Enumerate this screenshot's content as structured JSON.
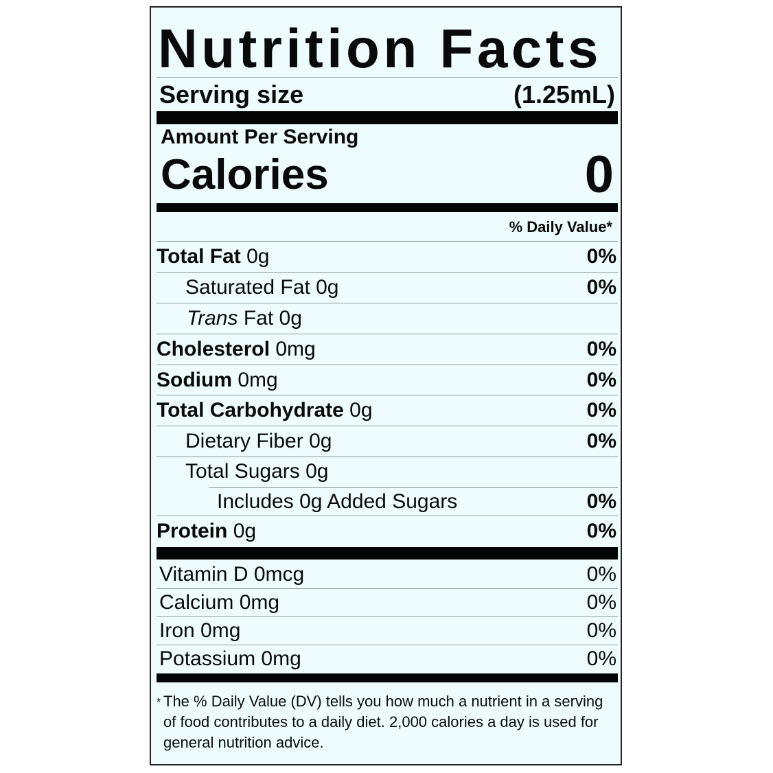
{
  "title": "Nutrition Facts",
  "serving": {
    "label": "Serving size",
    "value": "(1.25mL)"
  },
  "amount_per_serving": "Amount Per Serving",
  "calories": {
    "label": "Calories",
    "value": "0"
  },
  "daily_value_header": "% Daily Value*",
  "nutrients": [
    {
      "name": "Total Fat",
      "amount": "0g",
      "dv": "0%"
    },
    {
      "name": "Saturated Fat",
      "amount": "0g",
      "dv": "0%"
    },
    {
      "name": "Trans",
      "name_rest": "Fat",
      "amount": "0g",
      "dv": ""
    },
    {
      "name": "Cholesterol",
      "amount": "0mg",
      "dv": "0%"
    },
    {
      "name": "Sodium",
      "amount": "0mg",
      "dv": "0%"
    },
    {
      "name": "Total Carbohydrate",
      "amount": "0g",
      "dv": "0%"
    },
    {
      "name": "Dietary Fiber",
      "amount": "0g",
      "dv": "0%"
    },
    {
      "name": "Total Sugars",
      "amount": "0g",
      "dv": ""
    },
    {
      "name": "Includes 0g Added Sugars",
      "amount": "",
      "dv": "0%"
    },
    {
      "name": "Protein",
      "amount": "0g",
      "dv": "0%"
    }
  ],
  "vitamins": [
    {
      "name": "Vitamin D 0mcg",
      "dv": "0%"
    },
    {
      "name": "Calcium 0mg",
      "dv": "0%"
    },
    {
      "name": "Iron 0mg",
      "dv": "0%"
    },
    {
      "name": "Potassium 0mg",
      "dv": "0%"
    }
  ],
  "footnote": {
    "star": "*",
    "text": "The % Daily Value (DV) tells you how much a nutrient in a serving of food contributes to a daily diet. 2,000 calories a day is used for general nutrition advice."
  }
}
